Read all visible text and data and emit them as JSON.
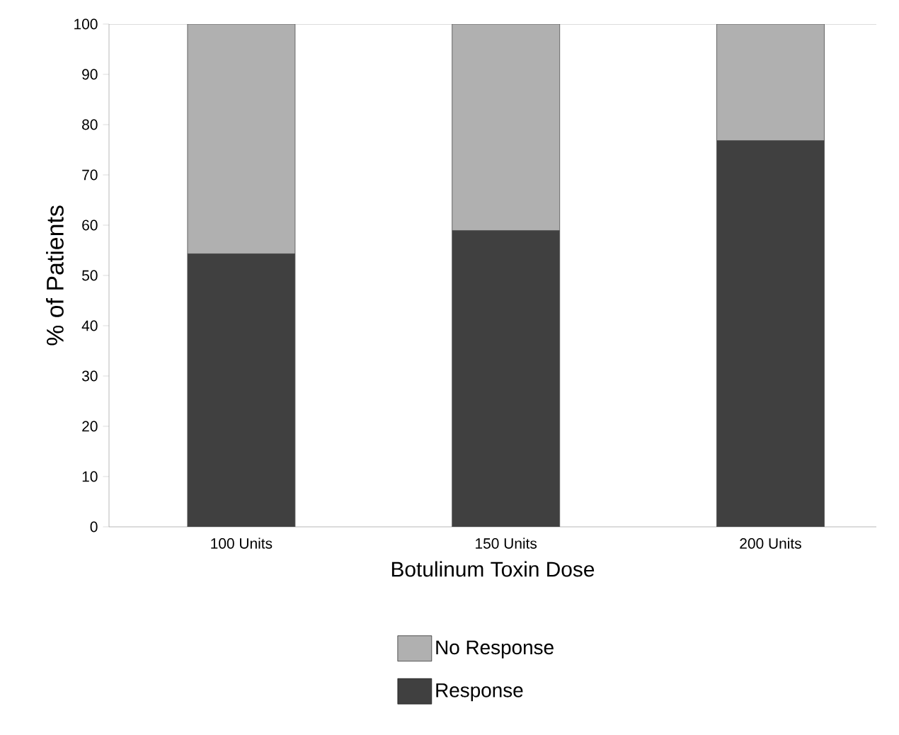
{
  "chart_data": {
    "type": "bar",
    "stacked": true,
    "xlabel": "Botulinum Toxin Dose",
    "ylabel": "% of Patients",
    "categories": [
      "100 Units",
      "150 Units",
      "200 Units"
    ],
    "series": [
      {
        "name": "Response",
        "color": "#404040",
        "values": [
          54.3,
          58.9,
          76.8
        ]
      },
      {
        "name": "No Response",
        "color": "#b0b0b0",
        "values": [
          45.7,
          41.1,
          23.2
        ]
      }
    ],
    "ylim": [
      0,
      100
    ],
    "yticks": [
      0,
      10,
      20,
      30,
      40,
      50,
      60,
      70,
      80,
      90,
      100
    ],
    "legend": "bottom",
    "grid": false
  }
}
